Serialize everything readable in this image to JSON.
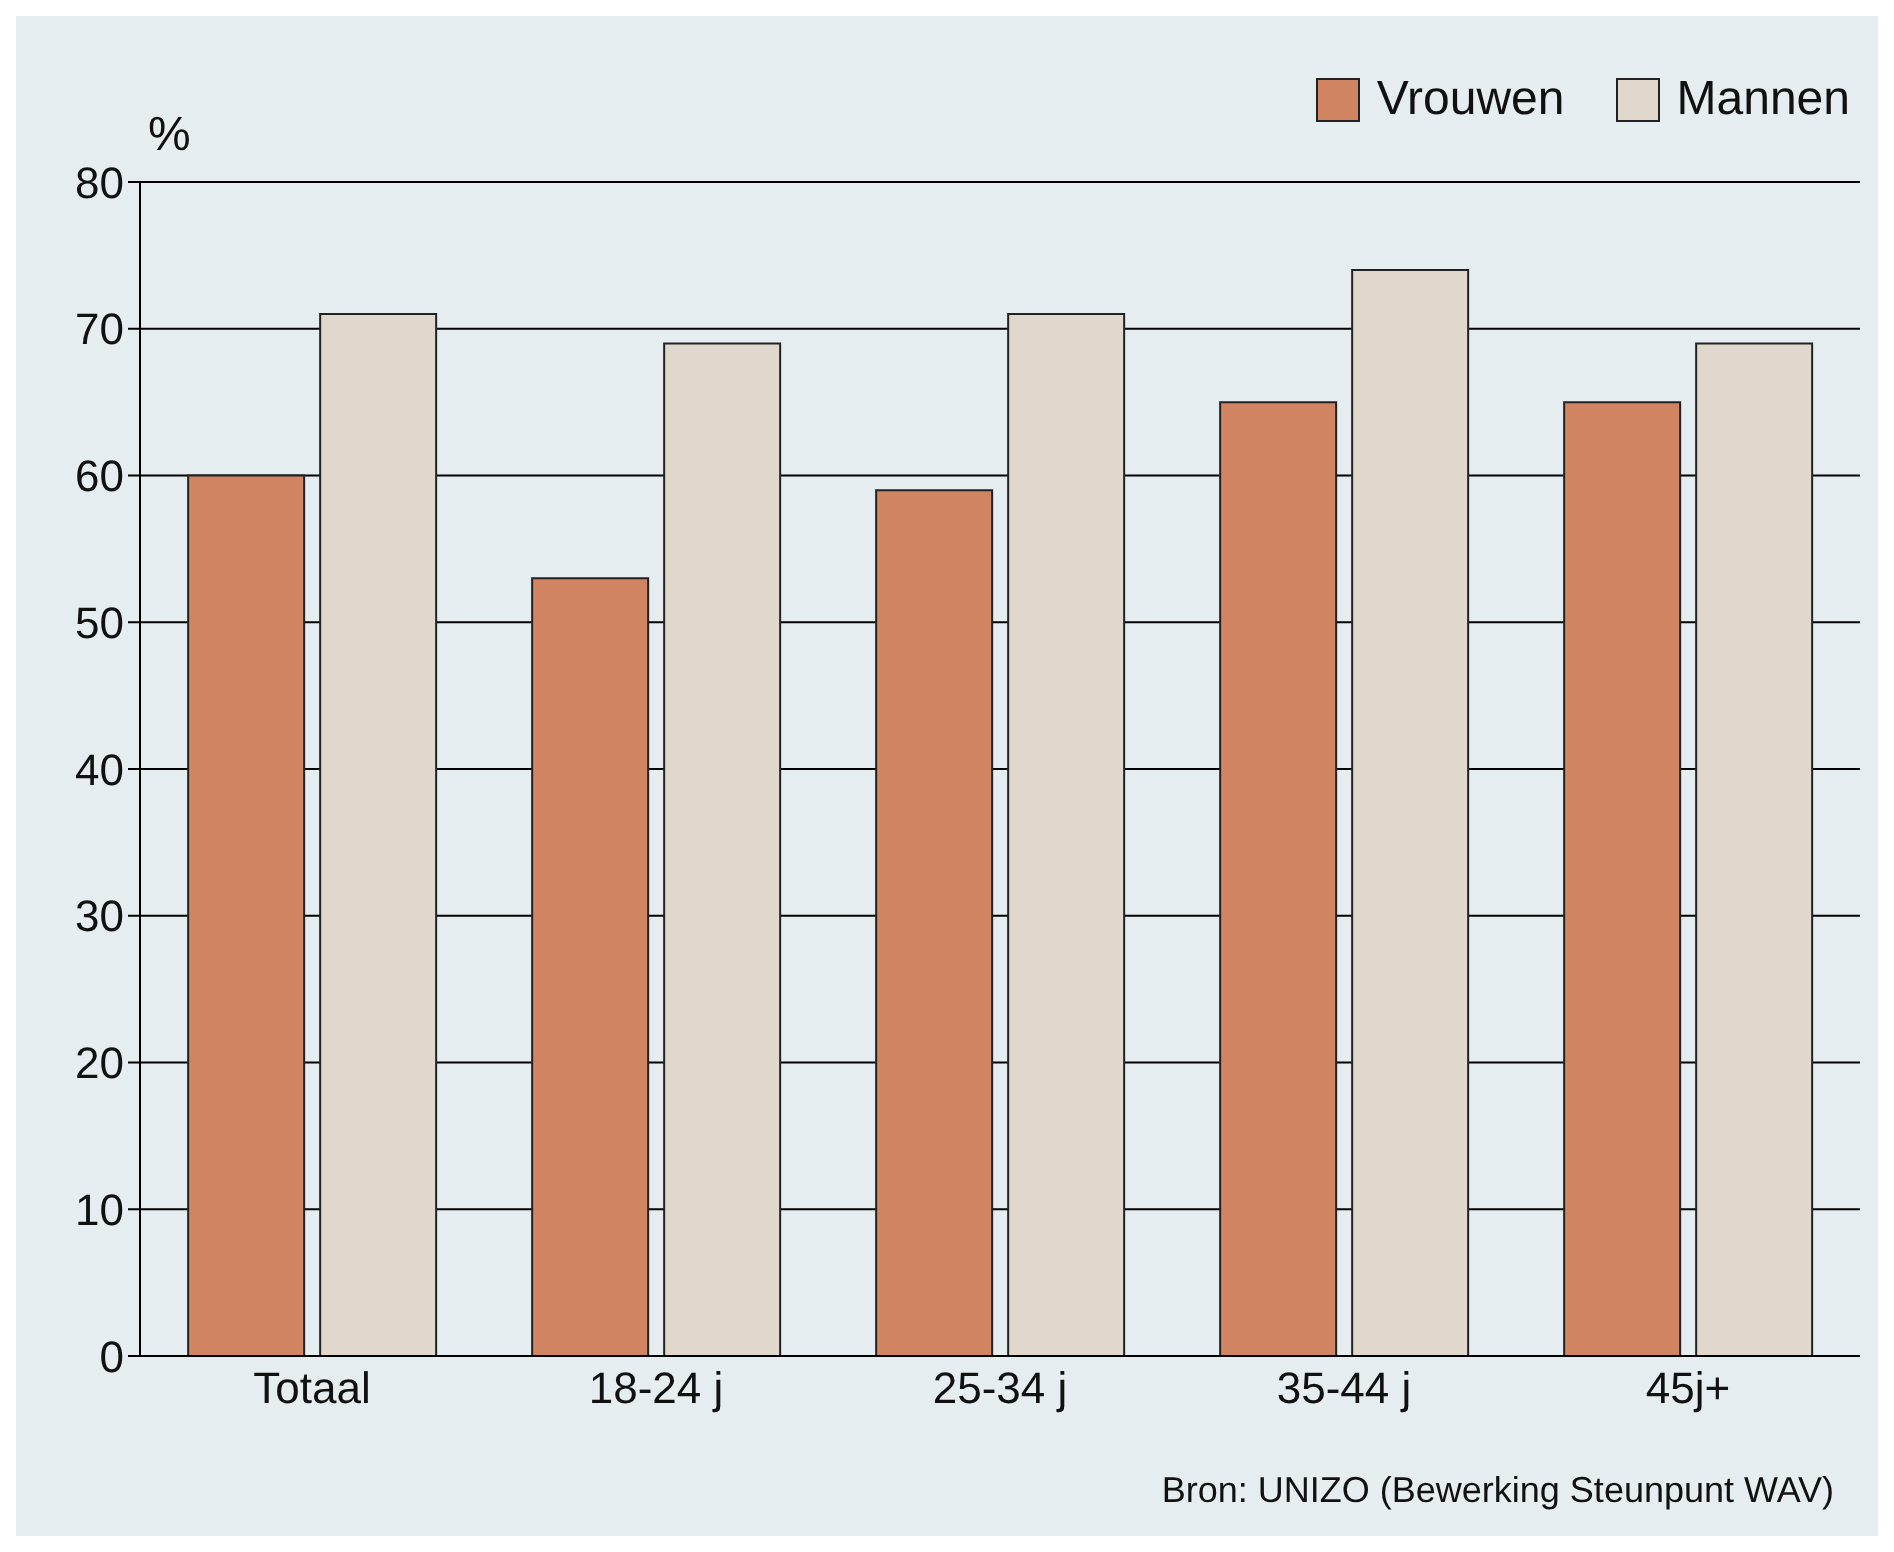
{
  "chart_data": {
    "type": "bar",
    "ylabel": "%",
    "categories": [
      "Totaal",
      "18-24 j",
      "25-34 j",
      "35-44 j",
      "45j+"
    ],
    "series": [
      {
        "name": "Vrouwen",
        "color": "#d08461",
        "values": [
          60,
          53,
          59,
          65,
          65
        ]
      },
      {
        "name": "Mannen",
        "color": "#e0d8cc",
        "values": [
          71,
          69,
          71,
          74,
          69
        ]
      }
    ],
    "ylim": [
      0,
      80
    ],
    "yticks": [
      0,
      10,
      20,
      30,
      40,
      50,
      60,
      70,
      80
    ],
    "grid": "y",
    "legend": "top right",
    "annotations": [
      "Bron: UNIZO (Bewerking Steunpunt WAV)"
    ]
  }
}
